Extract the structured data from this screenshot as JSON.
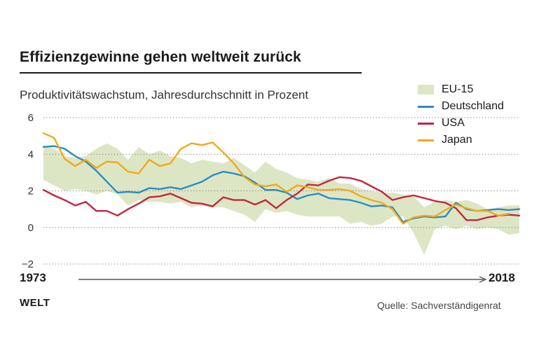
{
  "header": {
    "title": "Effizienzgewinne gehen weltweit zurück",
    "subtitle": "Produktivitätswachstum, Jahresdurchschnitt in Prozent"
  },
  "footer": {
    "brand": "WELT",
    "source": "Quelle: Sachverständigenrat"
  },
  "chart_data": {
    "type": "line",
    "title": "Effizienzgewinne gehen weltweit zurück",
    "subtitle": "Produktivitätswachstum, Jahresdurchschnitt in Prozent",
    "x_start_label": "1973",
    "x_end_label": "2018",
    "x_range": [
      1973,
      2018
    ],
    "ylim": [
      -2,
      6
    ],
    "yticks": [
      6,
      4,
      2,
      0,
      -2
    ],
    "grid": "horizontal dotted",
    "legend_position": "top-right",
    "x": [
      1973,
      1974,
      1975,
      1976,
      1977,
      1978,
      1979,
      1980,
      1981,
      1982,
      1983,
      1984,
      1985,
      1986,
      1987,
      1988,
      1989,
      1990,
      1991,
      1992,
      1993,
      1994,
      1995,
      1996,
      1997,
      1998,
      1999,
      2000,
      2001,
      2002,
      2003,
      2004,
      2005,
      2006,
      2007,
      2008,
      2009,
      2010,
      2011,
      2012,
      2013,
      2014,
      2015,
      2016,
      2017,
      2018
    ],
    "band": {
      "name": "EU-15",
      "color": "#dde6c4",
      "upper": [
        4.5,
        4.3,
        3.9,
        3.8,
        3.9,
        4.3,
        4.6,
        4.3,
        3.7,
        4.4,
        4.0,
        4.2,
        3.9,
        3.8,
        3.5,
        3.7,
        3.6,
        3.5,
        3.8,
        3.4,
        3.0,
        3.6,
        3.2,
        3.0,
        2.7,
        2.6,
        2.5,
        2.7,
        2.4,
        2.4,
        2.1,
        2.0,
        1.9,
        1.9,
        1.8,
        1.7,
        1.1,
        1.4,
        1.5,
        1.4,
        1.5,
        1.3,
        1.0,
        1.1,
        1.2,
        1.2
      ],
      "lower": [
        2.6,
        2.3,
        2.0,
        2.1,
        2.0,
        1.8,
        2.0,
        1.8,
        1.2,
        1.5,
        1.4,
        1.4,
        1.3,
        1.4,
        1.1,
        1.2,
        1.1,
        1.1,
        0.9,
        0.7,
        0.3,
        1.0,
        0.8,
        0.9,
        0.7,
        0.6,
        0.6,
        0.6,
        0.6,
        0.2,
        0.3,
        0.1,
        0.2,
        0.6,
        0.6,
        -0.3,
        -1.5,
        -0.1,
        0.1,
        -0.1,
        0.1,
        -0.1,
        0.0,
        -0.1,
        -0.4,
        -0.3
      ]
    },
    "series": [
      {
        "name": "Deutschland",
        "color": "#2b8cc4",
        "values": [
          4.4,
          4.45,
          4.3,
          3.9,
          3.6,
          3.1,
          2.5,
          1.9,
          1.95,
          1.9,
          2.15,
          2.1,
          2.2,
          2.1,
          2.3,
          2.5,
          2.85,
          3.05,
          2.95,
          2.8,
          2.45,
          2.05,
          2.05,
          1.9,
          1.55,
          1.75,
          1.85,
          1.6,
          1.55,
          1.5,
          1.35,
          1.15,
          1.2,
          1.1,
          0.3,
          0.5,
          0.6,
          0.55,
          0.6,
          1.35,
          1.0,
          0.9,
          0.95,
          1.0,
          0.95,
          1.0
        ]
      },
      {
        "name": "USA",
        "color": "#c2263f",
        "values": [
          2.05,
          1.75,
          1.5,
          1.2,
          1.4,
          0.9,
          0.9,
          0.65,
          1.0,
          1.3,
          1.65,
          1.7,
          1.85,
          1.6,
          1.35,
          1.3,
          1.15,
          1.65,
          1.5,
          1.5,
          1.25,
          1.5,
          1.05,
          1.5,
          1.85,
          2.35,
          2.3,
          2.55,
          2.75,
          2.7,
          2.55,
          2.25,
          1.95,
          1.5,
          1.65,
          1.75,
          1.6,
          1.45,
          1.35,
          1.05,
          0.4,
          0.4,
          0.55,
          0.65,
          0.7,
          0.65
        ]
      },
      {
        "name": "Japan",
        "color": "#f0a91c",
        "values": [
          5.15,
          4.9,
          3.75,
          3.35,
          3.7,
          3.25,
          3.6,
          3.55,
          3.05,
          2.95,
          3.7,
          3.35,
          3.5,
          4.3,
          4.6,
          4.5,
          4.65,
          4.1,
          3.5,
          2.75,
          2.35,
          2.25,
          2.35,
          1.95,
          2.3,
          2.2,
          2.05,
          2.05,
          2.1,
          2.0,
          1.7,
          1.5,
          1.35,
          1.0,
          0.2,
          0.55,
          0.65,
          0.6,
          0.95,
          1.25,
          1.05,
          0.9,
          0.9,
          0.65,
          0.75,
          null
        ]
      }
    ]
  }
}
